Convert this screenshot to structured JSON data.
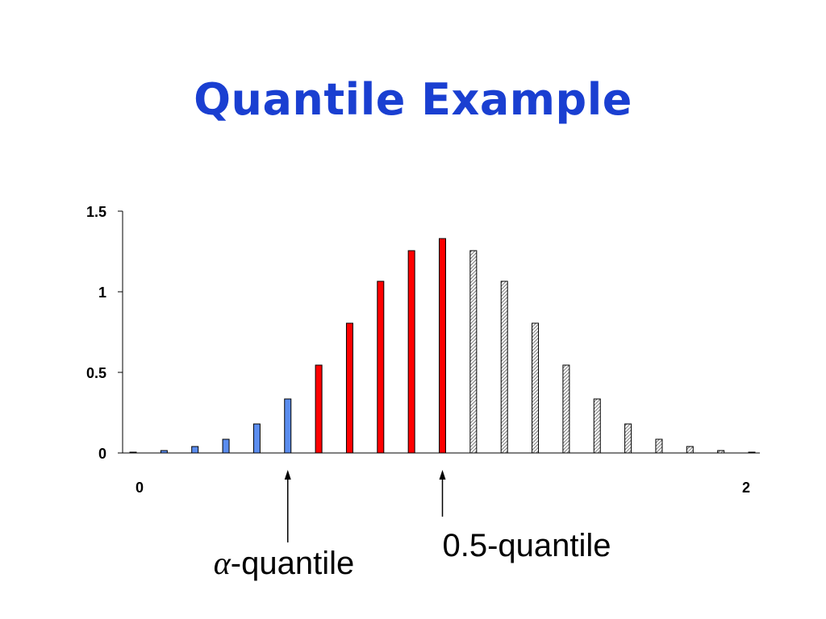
{
  "slide": {
    "title": "Quantile Example"
  },
  "colors": {
    "title": "#1a3fd1",
    "lower_tail": "#5b8def",
    "middle": "#ff0000",
    "upper_tail_hatched": "#bdbdbd",
    "axis": "#000000"
  },
  "chart_data": {
    "type": "bar",
    "title": "",
    "xlabel": "",
    "ylabel": "",
    "ylim": [
      0,
      1.5
    ],
    "xlim": [
      0,
      2
    ],
    "y_ticks": [
      "0",
      "0.5",
      "1",
      "1.5"
    ],
    "y_tick_values": [
      0,
      0.5,
      1,
      1.5
    ],
    "x_ticks": [
      "0",
      "2"
    ],
    "x_tick_values": [
      0,
      2
    ],
    "grid": false,
    "series": [
      {
        "style": "lower-tail",
        "color": "#5b8def",
        "x": [
          0.0,
          0.1,
          0.2,
          0.3,
          0.4,
          0.5
        ],
        "values": [
          0.005,
          0.015,
          0.04,
          0.085,
          0.18,
          0.335
        ]
      },
      {
        "style": "middle",
        "color": "#ff0000",
        "x": [
          0.6,
          0.7,
          0.8,
          0.9,
          1.0
        ],
        "values": [
          0.545,
          0.805,
          1.065,
          1.255,
          1.33
        ]
      },
      {
        "style": "upper-tail-hatched",
        "color": "#bdbdbd",
        "x": [
          1.1,
          1.2,
          1.3,
          1.4,
          1.5,
          1.6,
          1.7,
          1.8,
          1.9,
          2.0
        ],
        "values": [
          1.255,
          1.065,
          0.805,
          0.545,
          0.335,
          0.18,
          0.085,
          0.04,
          0.015,
          0.005
        ]
      }
    ],
    "annotations": [
      {
        "symbol": "α",
        "text": "-quantile",
        "x": 0.5
      },
      {
        "symbol": "",
        "text": "0.5-quantile",
        "x": 1.0
      }
    ]
  }
}
